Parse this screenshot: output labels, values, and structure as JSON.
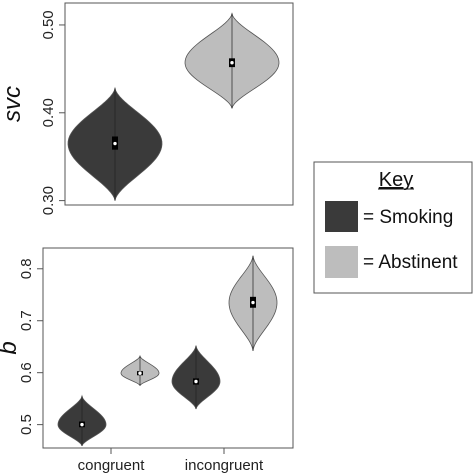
{
  "chart_data": [
    {
      "type": "violin",
      "ylabel": "svc",
      "ylim": [
        0.295,
        0.525
      ],
      "yticks": [
        0.3,
        0.4,
        0.5
      ],
      "ytick_labels": [
        "0.30",
        "0.40",
        "0.50"
      ],
      "groups": [
        {
          "series": "Smoking",
          "min": 0.3,
          "q1": 0.358,
          "median": 0.365,
          "q3": 0.373,
          "max": 0.428,
          "peak": 0.365,
          "color": "#3a3a3a"
        },
        {
          "series": "Abstinent",
          "min": 0.405,
          "q1": 0.452,
          "median": 0.457,
          "q3": 0.462,
          "max": 0.513,
          "peak": 0.457,
          "color": "#bdbdbd"
        }
      ]
    },
    {
      "type": "violin",
      "ylabel": "b",
      "ylim": [
        0.455,
        0.84
      ],
      "yticks": [
        0.5,
        0.6,
        0.7,
        0.8
      ],
      "ytick_labels": [
        "0.5",
        "0.6",
        "0.7",
        "0.8"
      ],
      "categories": [
        "congruent",
        "incongruent"
      ],
      "groups": [
        {
          "category": "congruent",
          "series": "Smoking",
          "min": 0.459,
          "q1": 0.495,
          "median": 0.5,
          "q3": 0.506,
          "max": 0.555,
          "peak": 0.5,
          "color": "#3a3a3a"
        },
        {
          "category": "congruent",
          "series": "Abstinent",
          "min": 0.575,
          "q1": 0.595,
          "median": 0.599,
          "q3": 0.603,
          "max": 0.632,
          "peak": 0.599,
          "color": "#bdbdbd"
        },
        {
          "category": "incongruent",
          "series": "Smoking",
          "min": 0.53,
          "q1": 0.577,
          "median": 0.583,
          "q3": 0.589,
          "max": 0.652,
          "peak": 0.583,
          "color": "#3a3a3a"
        },
        {
          "category": "incongruent",
          "series": "Abstinent",
          "min": 0.642,
          "q1": 0.725,
          "median": 0.735,
          "q3": 0.746,
          "max": 0.825,
          "peak": 0.735,
          "color": "#bdbdbd"
        }
      ]
    }
  ],
  "legend": {
    "title": "Key",
    "items": [
      {
        "label": "= Smoking",
        "color": "#3a3a3a"
      },
      {
        "label": "= Abstinent",
        "color": "#bdbdbd"
      }
    ]
  }
}
